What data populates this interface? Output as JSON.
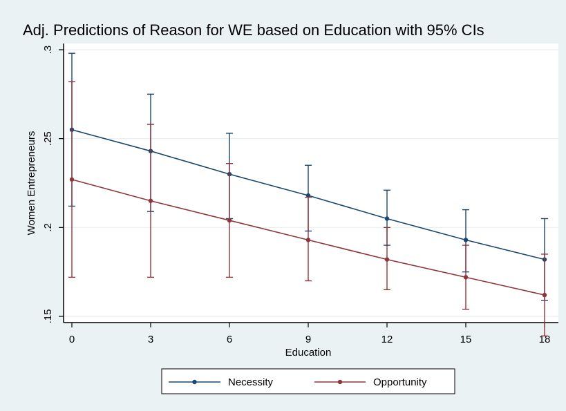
{
  "chart_data": {
    "type": "line",
    "title": "Adj. Predictions of Reason for WE based on Education with 95% CIs",
    "xlabel": "Education",
    "ylabel": "Women Entrepreneurs",
    "x": [
      0,
      3,
      6,
      9,
      12,
      15,
      18
    ],
    "xticks": [
      "0",
      "3",
      "6",
      "9",
      "12",
      "15",
      "18"
    ],
    "yticks": [
      ".15",
      ".2",
      ".25",
      ".3"
    ],
    "xlim": [
      0,
      18
    ],
    "ylim": [
      0.15,
      0.3
    ],
    "grid": true,
    "legend_position": "bottom",
    "series": [
      {
        "name": "Necessity",
        "color": "#1a476f",
        "values": [
          0.255,
          0.243,
          0.23,
          0.218,
          0.205,
          0.193,
          0.182
        ],
        "ci_low": [
          0.212,
          0.209,
          0.205,
          0.198,
          0.19,
          0.175,
          0.159
        ],
        "ci_high": [
          0.298,
          0.275,
          0.253,
          0.235,
          0.221,
          0.21,
          0.205
        ]
      },
      {
        "name": "Opportunity",
        "color": "#90353b",
        "values": [
          0.227,
          0.215,
          0.204,
          0.193,
          0.182,
          0.172,
          0.162
        ],
        "ci_low": [
          0.172,
          0.172,
          0.172,
          0.17,
          0.165,
          0.154,
          0.139
        ],
        "ci_high": [
          0.282,
          0.258,
          0.236,
          0.217,
          0.2,
          0.19,
          0.185
        ]
      }
    ]
  }
}
